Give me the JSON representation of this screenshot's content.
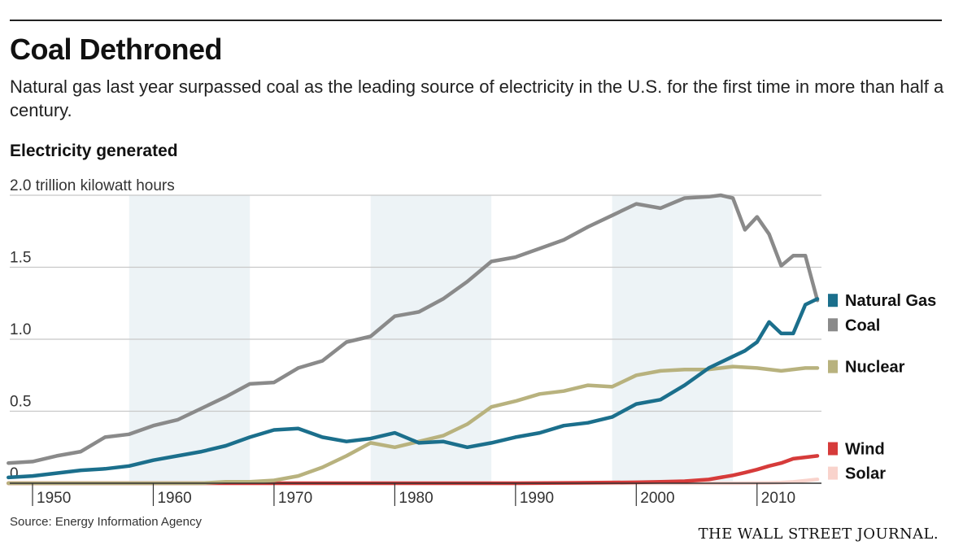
{
  "header": {
    "title": "Coal Dethroned",
    "subtitle": "Natural gas last year surpassed coal as the leading source of electricity in the U.S. for the first time in more than half a century.",
    "section_label": "Electricity generated"
  },
  "footer": {
    "source": "Source: Energy Information Agency",
    "brand": "THE WALL STREET JOURNAL."
  },
  "chart_data": {
    "type": "line",
    "title": "Electricity generated",
    "ylabel": "2.0 trillion kilowatt hours",
    "ylim": [
      0,
      2.0
    ],
    "xlim": [
      1948,
      2015
    ],
    "y_ticks": [
      {
        "value": 2.0,
        "label": "2.0 trillion kilowatt hours"
      },
      {
        "value": 1.5,
        "label": "1.5"
      },
      {
        "value": 1.0,
        "label": "1.0"
      },
      {
        "value": 0.5,
        "label": "0.5"
      },
      {
        "value": 0,
        "label": "0"
      }
    ],
    "x_ticks": [
      {
        "value": 1950,
        "label": "1950"
      },
      {
        "value": 1960,
        "label": "1960"
      },
      {
        "value": 1970,
        "label": "1970"
      },
      {
        "value": 1980,
        "label": "1980"
      },
      {
        "value": 1990,
        "label": "1990"
      },
      {
        "value": 2000,
        "label": "2000"
      },
      {
        "value": 2010,
        "label": "2010"
      }
    ],
    "shaded_decades": [
      [
        1958,
        1968
      ],
      [
        1978,
        1988
      ],
      [
        1998,
        2008
      ]
    ],
    "grid": true,
    "legend_position": "right",
    "colors": {
      "grid": "#c8c8c8",
      "band": "#edf3f6",
      "axis": "#333333"
    },
    "series": [
      {
        "name": "Coal",
        "color": "#8a8a8a",
        "x": [
          1948,
          1950,
          1952,
          1954,
          1956,
          1958,
          1960,
          1962,
          1964,
          1966,
          1968,
          1970,
          1972,
          1974,
          1976,
          1978,
          1980,
          1982,
          1984,
          1986,
          1988,
          1990,
          1992,
          1994,
          1996,
          1998,
          2000,
          2002,
          2004,
          2006,
          2007,
          2008,
          2009,
          2010,
          2011,
          2012,
          2013,
          2014,
          2015
        ],
        "values": [
          0.14,
          0.15,
          0.19,
          0.22,
          0.32,
          0.34,
          0.4,
          0.44,
          0.52,
          0.6,
          0.69,
          0.7,
          0.8,
          0.85,
          0.98,
          1.02,
          1.16,
          1.19,
          1.28,
          1.4,
          1.54,
          1.57,
          1.63,
          1.69,
          1.78,
          1.86,
          1.94,
          1.91,
          1.98,
          1.99,
          2.0,
          1.98,
          1.76,
          1.85,
          1.73,
          1.51,
          1.58,
          1.58,
          1.27
        ]
      },
      {
        "name": "Natural Gas",
        "color": "#1b6f8c",
        "x": [
          1948,
          1950,
          1952,
          1954,
          1956,
          1958,
          1960,
          1962,
          1964,
          1966,
          1968,
          1970,
          1972,
          1974,
          1976,
          1978,
          1980,
          1982,
          1984,
          1986,
          1988,
          1990,
          1992,
          1994,
          1996,
          1998,
          2000,
          2002,
          2004,
          2006,
          2008,
          2009,
          2010,
          2011,
          2012,
          2013,
          2014,
          2015
        ],
        "values": [
          0.04,
          0.05,
          0.07,
          0.09,
          0.1,
          0.12,
          0.16,
          0.19,
          0.22,
          0.26,
          0.32,
          0.37,
          0.38,
          0.32,
          0.29,
          0.31,
          0.35,
          0.28,
          0.29,
          0.25,
          0.28,
          0.32,
          0.35,
          0.4,
          0.42,
          0.46,
          0.55,
          0.58,
          0.68,
          0.8,
          0.88,
          0.92,
          0.98,
          1.12,
          1.04,
          1.04,
          1.24,
          1.28
        ]
      },
      {
        "name": "Nuclear",
        "color": "#b8b27e",
        "x": [
          1948,
          1957,
          1960,
          1962,
          1964,
          1966,
          1968,
          1970,
          1972,
          1974,
          1976,
          1978,
          1980,
          1982,
          1984,
          1986,
          1988,
          1990,
          1992,
          1994,
          1996,
          1998,
          2000,
          2002,
          2004,
          2006,
          2008,
          2010,
          2012,
          2014,
          2015
        ],
        "values": [
          0,
          0,
          0,
          0,
          0,
          0.01,
          0.01,
          0.02,
          0.05,
          0.11,
          0.19,
          0.28,
          0.25,
          0.29,
          0.33,
          0.41,
          0.53,
          0.57,
          0.62,
          0.64,
          0.68,
          0.67,
          0.75,
          0.78,
          0.79,
          0.79,
          0.81,
          0.8,
          0.78,
          0.8,
          0.8
        ]
      },
      {
        "name": "Wind",
        "color": "#d63b3a",
        "x": [
          1948,
          1990,
          1995,
          2000,
          2002,
          2004,
          2006,
          2008,
          2009,
          2010,
          2011,
          2012,
          2013,
          2014,
          2015
        ],
        "values": [
          0,
          0,
          0.003,
          0.006,
          0.01,
          0.014,
          0.026,
          0.055,
          0.074,
          0.095,
          0.12,
          0.14,
          0.17,
          0.18,
          0.19
        ]
      },
      {
        "name": "Solar",
        "color": "#f9d3cc",
        "x": [
          1948,
          2008,
          2010,
          2011,
          2012,
          2013,
          2014,
          2015
        ],
        "values": [
          0,
          0,
          0.001,
          0.002,
          0.004,
          0.009,
          0.018,
          0.027
        ]
      }
    ],
    "legend": [
      {
        "name": "Natural Gas",
        "color": "#1b6f8c",
        "y": 1.27
      },
      {
        "name": "Coal",
        "color": "#8a8a8a",
        "y": 1.1
      },
      {
        "name": "Nuclear",
        "color": "#b8b27e",
        "y": 0.81
      },
      {
        "name": "Wind",
        "color": "#d63b3a",
        "y": 0.24
      },
      {
        "name": "Solar",
        "color": "#f9d3cc",
        "y": 0.07
      }
    ]
  }
}
